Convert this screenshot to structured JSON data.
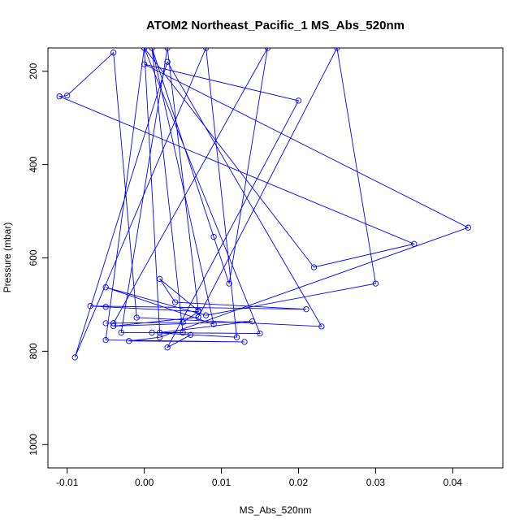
{
  "chart_data": {
    "type": "line",
    "title": "ATOM2 Northeast_Pacific_1 MS_Abs_520nm",
    "xlabel": "MS_Abs_520nm",
    "ylabel": "Pressure (mbar)",
    "xlim": [
      -0.0125,
      0.0465
    ],
    "ylim": [
      1050,
      150
    ],
    "y_reversed": true,
    "grid": false,
    "x_ticks": [
      -0.01,
      0.0,
      0.01,
      0.02,
      0.03,
      0.04
    ],
    "x_tick_labels": [
      "-0.01",
      "0.00",
      "0.01",
      "0.02",
      "0.03",
      "0.04"
    ],
    "y_ticks": [
      200,
      400,
      600,
      800,
      1000
    ],
    "y_tick_labels": [
      "200",
      "400",
      "600",
      "800",
      "1000"
    ],
    "color": "#0000ff",
    "series": [
      {
        "points": [
          [
            0.001,
            150
          ],
          [
            0.009,
            555
          ],
          [
            0.011,
            655
          ],
          [
            0.016,
            150
          ],
          [
            -0.004,
            740
          ],
          [
            -0.005,
            740
          ],
          [
            0.005,
            738
          ],
          [
            0.007,
            715
          ],
          [
            -0.005,
            705
          ],
          [
            -0.007,
            703
          ],
          [
            0.021,
            710
          ],
          [
            0.004,
            695
          ],
          [
            0.002,
            645
          ],
          [
            0.007,
            713
          ],
          [
            0.003,
            150
          ],
          [
            -0.003,
            760
          ],
          [
            0.005,
            760
          ],
          [
            0.001,
            150
          ],
          [
            0.009,
            742
          ],
          [
            -0.005,
            663
          ],
          [
            0.008,
            723
          ],
          [
            0.03,
            655
          ],
          [
            0.025,
            150
          ],
          [
            0.007,
            727
          ],
          [
            -0.004,
            746
          ],
          [
            0.014,
            736
          ],
          [
            0.002,
            760
          ],
          [
            0.0,
            150
          ],
          [
            0.022,
            620
          ],
          [
            0.035,
            570
          ],
          [
            -0.011,
            254
          ],
          [
            -0.01,
            252
          ],
          [
            -0.004,
            160
          ],
          [
            -0.001,
            728
          ],
          [
            0.023,
            747
          ],
          [
            0.003,
            180
          ],
          [
            -0.009,
            813
          ],
          [
            0.008,
            150
          ],
          [
            0.012,
            770
          ],
          [
            0.001,
            760
          ],
          [
            0.015,
            762
          ],
          [
            0.0,
            150
          ],
          [
            -0.005,
            776
          ],
          [
            0.013,
            780
          ],
          [
            -0.002,
            778
          ],
          [
            0.002,
            770
          ],
          [
            0.042,
            535
          ],
          [
            0.0,
            185
          ],
          [
            0.02,
            263
          ],
          [
            0.003,
            792
          ],
          [
            0.006,
            765
          ]
        ]
      }
    ]
  }
}
